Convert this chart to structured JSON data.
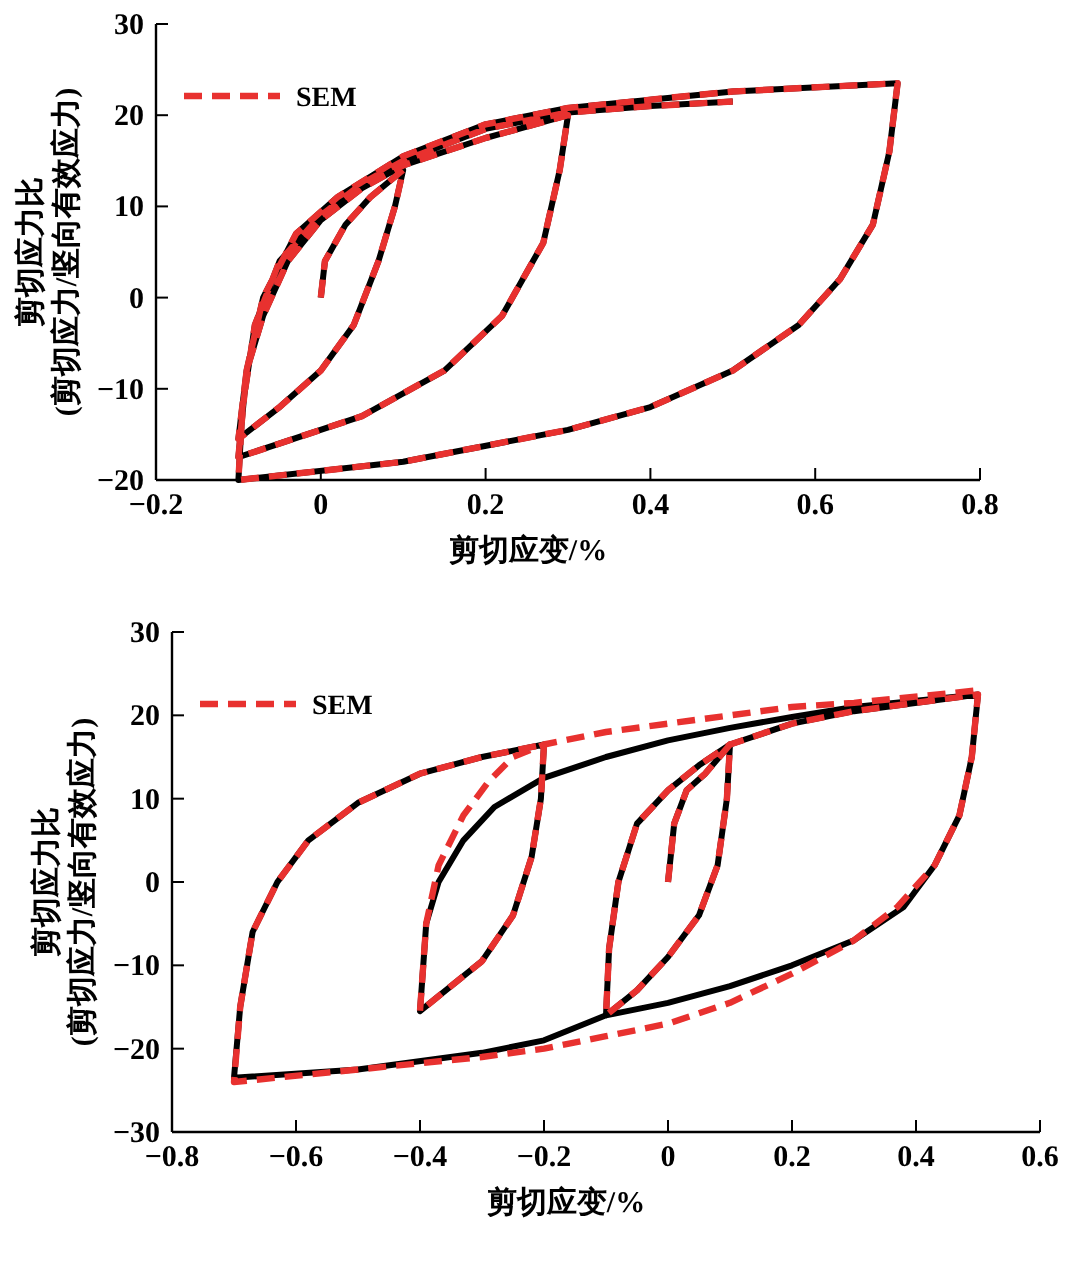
{
  "chart_data": [
    {
      "type": "line",
      "xlabel": "剪切应变/%",
      "ylabel": "剪切应力比\n(剪切应力/竖向有效应力)",
      "xlim": [
        -0.2,
        0.8
      ],
      "ylim": [
        -20,
        30
      ],
      "xticks": [
        {
          "value": -0.2,
          "label": "−0.2"
        },
        0,
        0.2,
        0.4,
        0.6,
        0.8
      ],
      "yticks": [
        {
          "value": -20,
          "label": "−20"
        },
        {
          "value": -10,
          "label": "−10"
        },
        0,
        10,
        20,
        30
      ],
      "legend": "top left",
      "series": [
        {
          "color": "#000000",
          "line_style": "solid",
          "x": [
            0,
            0.005,
            0.03,
            0.06,
            0.1,
            0.09,
            0.07,
            0.04,
            0,
            -0.05,
            -0.1,
            -0.09,
            -0.07,
            -0.04,
            0,
            0.05,
            0.1,
            0.2,
            0.3,
            0.29,
            0.27,
            0.22,
            0.15,
            0.05,
            -0.1,
            -0.09,
            -0.07,
            -0.03,
            0.02,
            0.1,
            0.2,
            0.3,
            0.5,
            0.7,
            0.69,
            0.67,
            0.63,
            0.58,
            0.5,
            0.4,
            0.3,
            0.1,
            -0.1,
            -0.095,
            -0.08,
            -0.05,
            0,
            0.05,
            0.1,
            0.2,
            0.3,
            0.4,
            0.5
          ],
          "values": [
            0,
            4,
            8,
            11,
            14,
            10,
            4,
            -3,
            -8,
            -12,
            -15.5,
            -8,
            -2,
            4,
            8.5,
            12,
            14.5,
            17.5,
            20,
            14,
            6,
            -2,
            -8,
            -13,
            -17.5,
            -8,
            0,
            7,
            11,
            15.5,
            19,
            20.8,
            22.6,
            23.5,
            16,
            8,
            2,
            -3,
            -8,
            -12,
            -14.5,
            -18,
            -20,
            -12,
            -3,
            4,
            9,
            12.5,
            15,
            18.5,
            20.3,
            21,
            21.5
          ]
        },
        {
          "name": "SEM",
          "color": "#e8312f",
          "line_style": "dashed",
          "x": [
            0,
            0.005,
            0.03,
            0.06,
            0.1,
            0.09,
            0.07,
            0.04,
            0,
            -0.05,
            -0.1,
            -0.09,
            -0.07,
            -0.04,
            0,
            0.05,
            0.1,
            0.2,
            0.3,
            0.29,
            0.27,
            0.22,
            0.15,
            0.05,
            -0.1,
            -0.09,
            -0.07,
            -0.03,
            0.02,
            0.1,
            0.2,
            0.3,
            0.5,
            0.7,
            0.69,
            0.67,
            0.63,
            0.58,
            0.5,
            0.4,
            0.3,
            0.1,
            -0.1,
            -0.095,
            -0.08,
            -0.05,
            0,
            0.05,
            0.1,
            0.2,
            0.3,
            0.4,
            0.5
          ],
          "values": [
            0,
            4,
            8,
            11,
            14,
            10,
            4,
            -3,
            -8,
            -12,
            -15.5,
            -8,
            -2,
            4,
            8.5,
            12,
            14.5,
            17.5,
            20,
            14,
            6,
            -2,
            -8,
            -13,
            -17.5,
            -8,
            0,
            7,
            11,
            15.5,
            19,
            20.8,
            22.6,
            23.5,
            16,
            8,
            2,
            -3,
            -8,
            -12,
            -14.5,
            -18,
            -20,
            -12,
            -3,
            4,
            9,
            12.5,
            15,
            18.5,
            20.3,
            21,
            21.5
          ]
        }
      ]
    },
    {
      "type": "line",
      "xlabel": "剪切应变/%",
      "ylabel": "剪切应力比\n(剪切应力/竖向有效应力)",
      "xlim": [
        -0.8,
        0.6
      ],
      "ylim": [
        -30,
        30
      ],
      "xticks": [
        {
          "value": -0.8,
          "label": "−0.8"
        },
        {
          "value": -0.6,
          "label": "−0.6"
        },
        {
          "value": -0.4,
          "label": "−0.4"
        },
        {
          "value": -0.2,
          "label": "−0.2"
        },
        0,
        0.2,
        0.4,
        0.6
      ],
      "yticks": [
        {
          "value": -30,
          "label": "−30"
        },
        {
          "value": -20,
          "label": "−20"
        },
        {
          "value": -10,
          "label": "−10"
        },
        0,
        10,
        20,
        30
      ],
      "legend": "top left",
      "series": [
        {
          "color": "#000000",
          "line_style": "solid",
          "x": [
            0,
            0.01,
            0.03,
            0.06,
            0.1,
            0.095,
            0.08,
            0.05,
            0,
            -0.05,
            -0.1,
            -0.095,
            -0.08,
            -0.05,
            0,
            0.05,
            0.1,
            0.2,
            0.3,
            0.5,
            0.49,
            0.47,
            0.43,
            0.38,
            0.3,
            0.2,
            0.1,
            0,
            -0.1,
            -0.2,
            -0.3,
            -0.5,
            -0.7,
            -0.69,
            -0.67,
            -0.63,
            -0.58,
            -0.5,
            -0.4,
            -0.3,
            -0.2,
            -0.205,
            -0.22,
            -0.25,
            -0.3,
            -0.4,
            -0.39,
            -0.37,
            -0.33,
            -0.28,
            -0.2,
            -0.1,
            0,
            0.1,
            0.2,
            0.3,
            0.5
          ],
          "values": [
            0,
            7,
            11,
            13,
            16.5,
            10,
            2,
            -4,
            -9,
            -13,
            -16,
            -8,
            0,
            7,
            11,
            14,
            16.5,
            19,
            20.5,
            22.5,
            15,
            8,
            2,
            -3,
            -7,
            -10,
            -12.5,
            -14.5,
            -16,
            -19,
            -20.5,
            -22.5,
            -23.5,
            -15,
            -6,
            0,
            5,
            9.5,
            13,
            15,
            16.5,
            10,
            3,
            -4,
            -9.5,
            -15.5,
            -5,
            0,
            5,
            9,
            12.5,
            15,
            17,
            18.5,
            19.8,
            21,
            22.5
          ]
        },
        {
          "name": "SEM",
          "color": "#e8312f",
          "line_style": "dashed",
          "x": [
            0,
            0.01,
            0.03,
            0.06,
            0.1,
            0.095,
            0.08,
            0.05,
            0,
            -0.05,
            -0.1,
            -0.095,
            -0.08,
            -0.05,
            0,
            0.05,
            0.1,
            0.2,
            0.3,
            0.5,
            0.49,
            0.47,
            0.43,
            0.37,
            0.3,
            0.2,
            0.1,
            0,
            -0.1,
            -0.2,
            -0.3,
            -0.5,
            -0.7,
            -0.69,
            -0.67,
            -0.63,
            -0.58,
            -0.5,
            -0.4,
            -0.3,
            -0.2,
            -0.205,
            -0.22,
            -0.25,
            -0.3,
            -0.4,
            -0.39,
            -0.37,
            -0.33,
            -0.29,
            -0.25,
            -0.2,
            -0.1,
            0,
            0.1,
            0.2,
            0.3,
            0.5
          ],
          "values": [
            0,
            7,
            11,
            13,
            16.5,
            10,
            2,
            -4,
            -9,
            -13,
            -16,
            -8,
            0,
            7,
            11,
            14,
            16.5,
            19,
            20.5,
            22.5,
            15,
            8,
            2,
            -3,
            -7,
            -11,
            -14.5,
            -17,
            -18.5,
            -20,
            -21,
            -22.5,
            -24,
            -15,
            -6,
            0,
            5,
            9.5,
            13,
            15,
            16.5,
            10,
            3,
            -4,
            -9.5,
            -15.5,
            -5,
            2,
            8,
            12,
            15,
            16.5,
            18,
            19,
            20,
            21,
            21.5,
            23
          ]
        }
      ]
    }
  ]
}
